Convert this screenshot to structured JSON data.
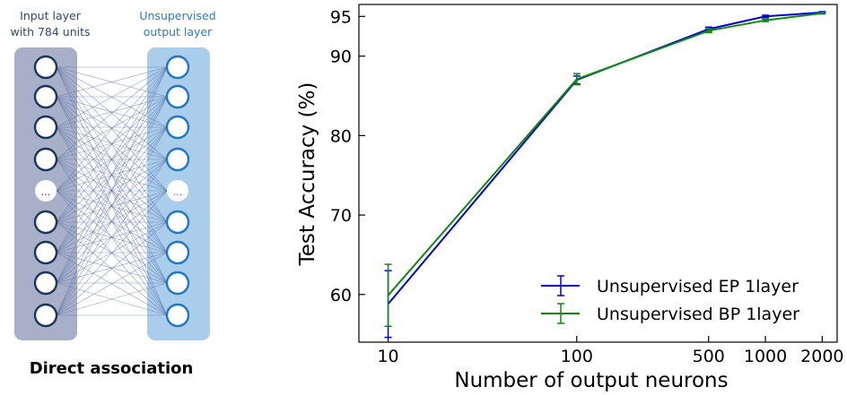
{
  "diagram": {
    "input_label_line1": "Input layer",
    "input_label_line2": "with 784 units",
    "output_label_line1": "Unsupervised",
    "output_label_line2": "output layer",
    "ellipsis": "...",
    "caption": "Direct association",
    "colors": {
      "input_panel": "#a7b0c8",
      "output_panel": "#a9cdeb",
      "input_node_stroke": "#1d3557",
      "output_node_stroke": "#1f78c1",
      "connection": "#5a6fa8"
    }
  },
  "chart_data": {
    "type": "line",
    "xscale": "log",
    "x": [
      10,
      100,
      500,
      1000,
      2000
    ],
    "xticks": [
      10,
      100,
      500,
      1000,
      2000
    ],
    "xtick_labels": [
      "10",
      "100",
      "500",
      "1000",
      "2000"
    ],
    "xlim": [
      7,
      2400
    ],
    "ylim": [
      54,
      96.5
    ],
    "yticks": [
      60,
      70,
      80,
      90,
      95
    ],
    "ytick_labels": [
      "60",
      "70",
      "80",
      "90",
      "95"
    ],
    "xlabel": "Number of output neurons",
    "ylabel": "Test Accuracy (%)",
    "legend_position": "lower-right",
    "grid": false,
    "series": [
      {
        "name": "Unsupervised EP 1layer",
        "color": "#0000dd",
        "values": [
          58.8,
          87.0,
          93.4,
          95.0,
          95.5
        ],
        "errors": [
          4.2,
          0.5,
          0.25,
          0.15,
          0.1
        ]
      },
      {
        "name": "Unsupervised BP 1layer",
        "color": "#118811",
        "values": [
          59.9,
          87.1,
          93.2,
          94.5,
          95.4
        ],
        "errors": [
          3.9,
          0.7,
          0.25,
          0.15,
          0.1
        ]
      }
    ]
  }
}
